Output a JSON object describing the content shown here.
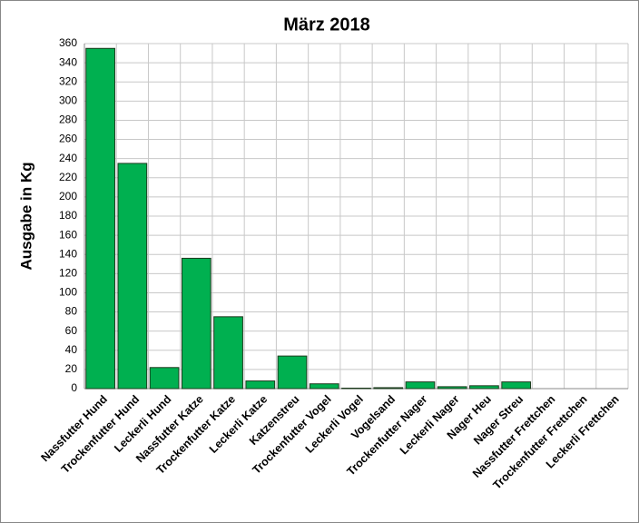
{
  "chart_data": {
    "type": "bar",
    "title": "März 2018",
    "y_label": "Ausgabe in Kg",
    "categories": [
      "Nassfutter Hund",
      "Trockenfutter Hund",
      "Leckerli Hund",
      "Nassfutter Katze",
      "Trockenfutter Katze",
      "Leckerli Katze",
      "Katzenstreu",
      "Trockenfutter Vogel",
      "Leckerli Vogel",
      "Vogelsand",
      "Trockenfutter Nager",
      "Leckerli Nager",
      "Nager Heu",
      "Nager Streu",
      "Nassfutter Frettchen",
      "Trockenfutter Frettchen",
      "Leckerli Frettchen"
    ],
    "values": [
      355,
      235,
      22,
      136,
      75,
      8,
      34,
      5,
      0.5,
      1,
      7,
      2,
      3,
      7,
      0,
      0,
      0
    ],
    "color": "#00b050",
    "ylim": [
      0,
      360
    ],
    "yticks": [
      0,
      20,
      40,
      60,
      80,
      100,
      120,
      140,
      160,
      180,
      200,
      220,
      240,
      260,
      280,
      300,
      320,
      340,
      360
    ],
    "grid": true
  }
}
